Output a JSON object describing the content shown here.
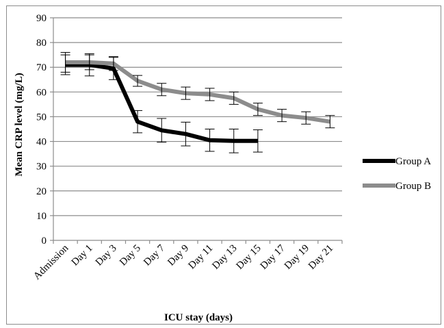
{
  "chart_data": {
    "type": "line",
    "title": "",
    "xlabel": "ICU stay (days)",
    "ylabel": "Mean CRP level (mg/L)",
    "ylim": [
      0,
      90
    ],
    "yticks": [
      0,
      10,
      20,
      30,
      40,
      50,
      60,
      70,
      80,
      90
    ],
    "categories": [
      "Admission",
      "Day 1",
      "Day 3",
      "Day 5",
      "Day 7",
      "Day 9",
      "Day 11",
      "Day 13",
      "Day 15",
      "Day 17",
      "Day 19",
      "Day 21"
    ],
    "grid": true,
    "legend_position": "right",
    "series": [
      {
        "name": "Group A",
        "color": "#000000",
        "values": [
          71,
          71,
          69.5,
          48,
          44.5,
          43,
          40.5,
          40.2,
          40.2,
          null,
          null,
          null
        ],
        "error": [
          4,
          4.5,
          4.5,
          4.5,
          4.8,
          4.8,
          4.5,
          4.8,
          4.5,
          null,
          null,
          null
        ]
      },
      {
        "name": "Group B",
        "color": "#8c8c8c",
        "values": [
          72,
          72,
          71.5,
          64.5,
          61,
          59.5,
          59,
          57.5,
          53,
          50.5,
          49.5,
          48
        ],
        "error": [
          4,
          3,
          2.8,
          2.2,
          2.5,
          2.5,
          2.5,
          2.5,
          2.5,
          2.5,
          2.5,
          2.5
        ]
      }
    ]
  }
}
